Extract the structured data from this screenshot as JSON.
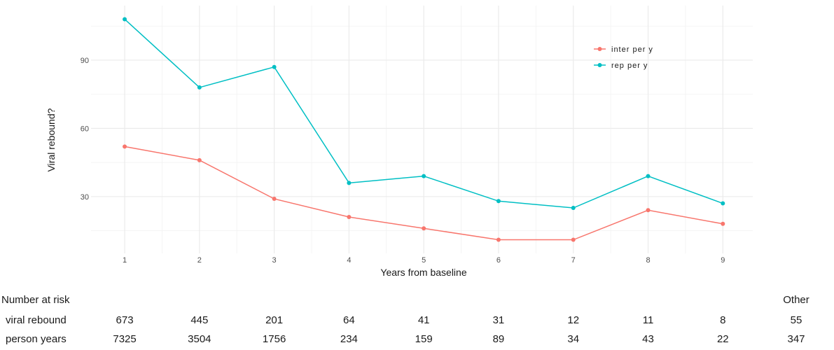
{
  "chart_data": {
    "type": "line",
    "xlabel": "Years from baseline",
    "ylabel": "Viral rebound?",
    "x": [
      1,
      2,
      3,
      4,
      5,
      6,
      7,
      8,
      9
    ],
    "xlim": [
      0.55,
      9.4
    ],
    "ylim": [
      5,
      114
    ],
    "y_ticks": [
      30,
      60,
      90
    ],
    "grid": true,
    "legend_position": "top-right",
    "series": [
      {
        "name": "inter per y",
        "color": "#F8766D",
        "values": [
          52,
          46,
          29,
          21,
          16,
          11,
          11,
          24,
          18
        ]
      },
      {
        "name": "rep per y",
        "color": "#00BFC4",
        "values": [
          108,
          78,
          87,
          36,
          39,
          28,
          25,
          39,
          27
        ]
      }
    ]
  },
  "risk_table": {
    "header": "Number at risk",
    "other_header": "Other",
    "rows": [
      {
        "label": "viral rebound",
        "values": [
          "673",
          "445",
          "201",
          "64",
          "41",
          "31",
          "12",
          "11",
          "8"
        ],
        "other": "55"
      },
      {
        "label": "person years",
        "values": [
          "7325",
          "3504",
          "1756",
          "234",
          "159",
          "89",
          "34",
          "43",
          "22"
        ],
        "other": "347"
      }
    ]
  }
}
